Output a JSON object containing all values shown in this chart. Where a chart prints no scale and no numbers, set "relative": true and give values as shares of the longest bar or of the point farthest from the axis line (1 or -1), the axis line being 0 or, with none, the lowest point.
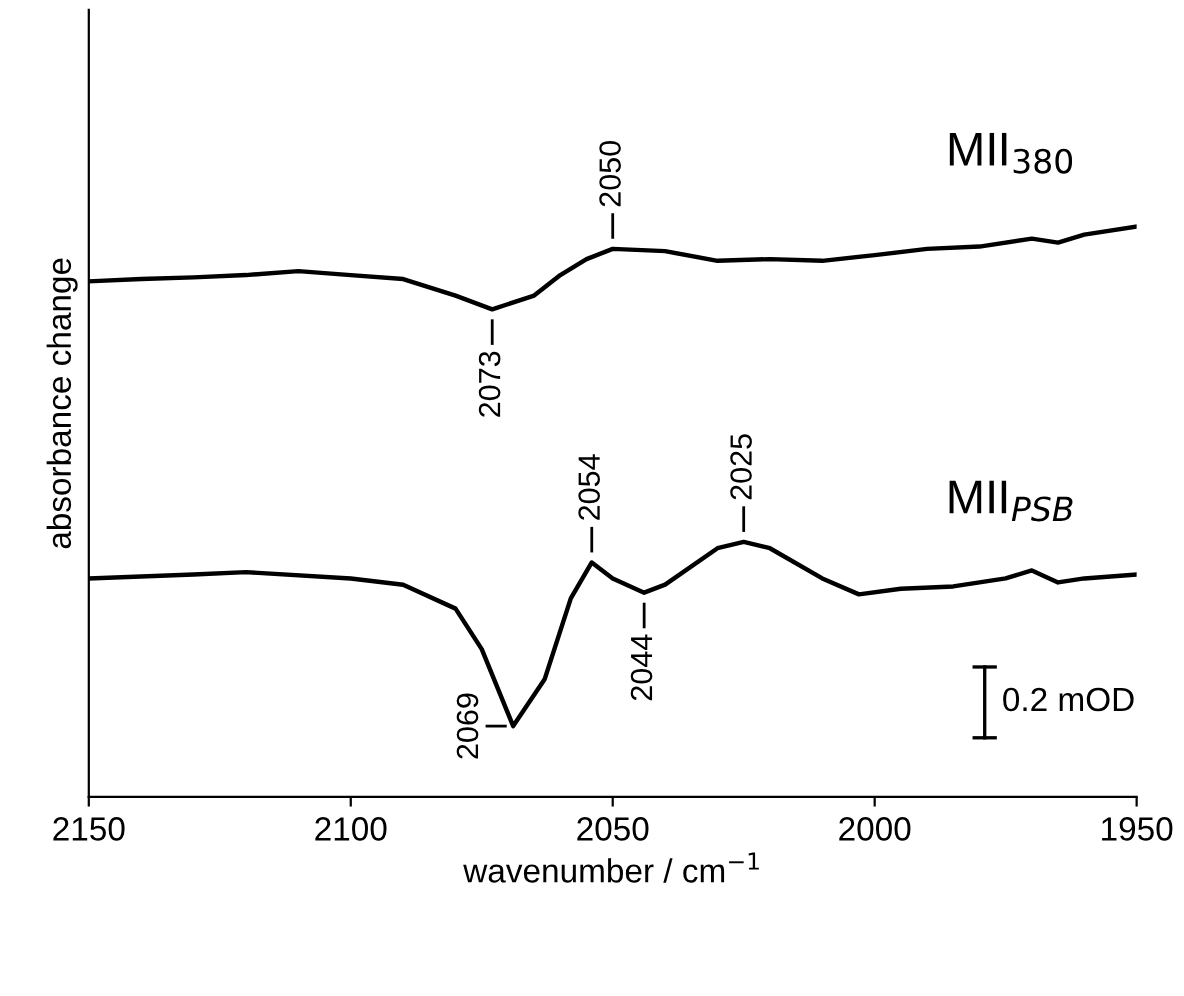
{
  "chart_data": {
    "type": "line",
    "relative": true,
    "xlabel": "wavenumber / cm$^{−1}$",
    "ylabel": "absorbance change",
    "xlim": [
      2150,
      1950
    ],
    "xticks": [
      2150,
      2100,
      2050,
      2000,
      1950
    ],
    "grid": false,
    "marker": "none",
    "line_style": "solid",
    "series": [
      {
        "name": "MII$_{380}$",
        "color": "#000000",
        "x": [
          2150,
          2140,
          2130,
          2120,
          2110,
          2100,
          2090,
          2080,
          2073,
          2065,
          2060,
          2055,
          2050,
          2040,
          2030,
          2020,
          2010,
          2000,
          1990,
          1980,
          1970,
          1965,
          1960,
          1950
        ],
        "values": [
          0.904,
          0.908,
          0.911,
          0.915,
          0.922,
          0.915,
          0.908,
          0.879,
          0.855,
          0.879,
          0.915,
          0.943,
          0.961,
          0.957,
          0.94,
          0.943,
          0.94,
          0.95,
          0.961,
          0.965,
          0.979,
          0.972,
          0.986,
          1
        ]
      },
      {
        "name": "MII$_{PSB}$",
        "color": "#000000",
        "x": [
          2150,
          2130,
          2120,
          2100,
          2090,
          2080,
          2075,
          2069,
          2063,
          2058,
          2054,
          2050,
          2044,
          2040,
          2030,
          2025,
          2020,
          2010,
          2003,
          1995,
          1985,
          1975,
          1970,
          1965,
          1960,
          1950
        ],
        "values": [
          0.383,
          0.39,
          0.394,
          0.383,
          0.372,
          0.33,
          0.259,
          0.124,
          0.206,
          0.348,
          0.411,
          0.383,
          0.358,
          0.372,
          0.436,
          0.447,
          0.436,
          0.383,
          0.355,
          0.365,
          0.369,
          0.383,
          0.397,
          0.376,
          0.383,
          0.39
        ]
      }
    ],
    "annotations": [
      {
        "text": "2050",
        "x": 2050,
        "y": 0.961
      },
      {
        "text": "2073",
        "x": 2073,
        "y": 0.855
      },
      {
        "text": "2054",
        "x": 2054,
        "y": 0.411
      },
      {
        "text": "2025",
        "x": 2025,
        "y": 0.447
      },
      {
        "text": "2044",
        "x": 2044,
        "y": 0.358
      },
      {
        "text": "2069",
        "x": 2069,
        "y": 0.124
      },
      "0.2 mOD"
    ]
  }
}
